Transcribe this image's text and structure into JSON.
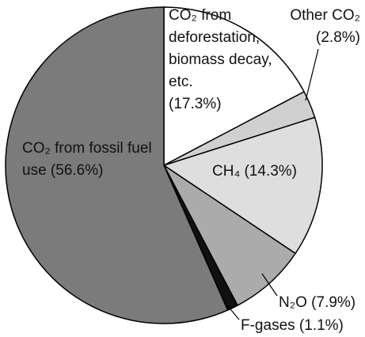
{
  "chart_data": {
    "type": "pie",
    "categories": [
      "CO₂ from deforestation, biomass decay, etc.",
      "Other CO₂",
      "CH₄",
      "N₂O",
      "F-gases",
      "CO₂ from fossil fuel use"
    ],
    "values": [
      17.3,
      2.8,
      14.3,
      7.9,
      1.1,
      56.6
    ],
    "value_labels": [
      "(17.3%)",
      "(2.8%)",
      "(14.3%)",
      "(7.9%)",
      "(1.1%)",
      "(56.6%)"
    ],
    "colors": [
      "#ffffff",
      "#d0d0d0",
      "#dedede",
      "#ababab",
      "#111111",
      "#7b7b7b"
    ]
  }
}
